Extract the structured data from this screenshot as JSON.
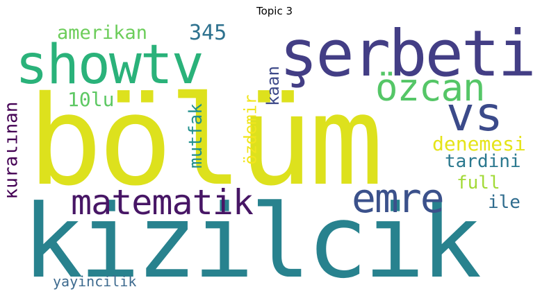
{
  "title": "Topic 3",
  "words": [
    {
      "text": "bölüm",
      "color": "#dde11d",
      "rank": 1
    },
    {
      "text": "kizilcik",
      "color": "#28828e",
      "rank": 2
    },
    {
      "text": "şerbeti",
      "color": "#433e85",
      "rank": 3
    },
    {
      "text": "showtv",
      "color": "#2ab27a",
      "rank": 4
    },
    {
      "text": "vs",
      "color": "#3b4a8a",
      "rank": 5
    },
    {
      "text": "özcan",
      "color": "#55c667",
      "rank": 6
    },
    {
      "text": "matematik",
      "color": "#471665",
      "rank": 7
    },
    {
      "text": "emre",
      "color": "#3b518b",
      "rank": 8
    },
    {
      "text": "345",
      "color": "#2d718e",
      "rank": 9
    },
    {
      "text": "amerikan",
      "color": "#6ccd5a",
      "rank": 10
    },
    {
      "text": "10lu",
      "color": "#5dc863",
      "rank": 11
    },
    {
      "text": "denemesi",
      "color": "#e5e419",
      "rank": 12
    },
    {
      "text": "tardini",
      "color": "#2a788e",
      "rank": 13
    },
    {
      "text": "full",
      "color": "#a2da37",
      "rank": 14
    },
    {
      "text": "ile",
      "color": "#2f6c8e",
      "rank": 15
    },
    {
      "text": "kuralinan",
      "color": "#440154",
      "rank": 16
    },
    {
      "text": "mutfak",
      "color": "#21908d",
      "rank": 17
    },
    {
      "text": "özdemir",
      "color": "#f1e51d",
      "rank": 18
    },
    {
      "text": "kaan",
      "color": "#3e4a89",
      "rank": 19
    },
    {
      "text": "yayincilik",
      "color": "#3d6a8e",
      "rank": 20
    }
  ]
}
